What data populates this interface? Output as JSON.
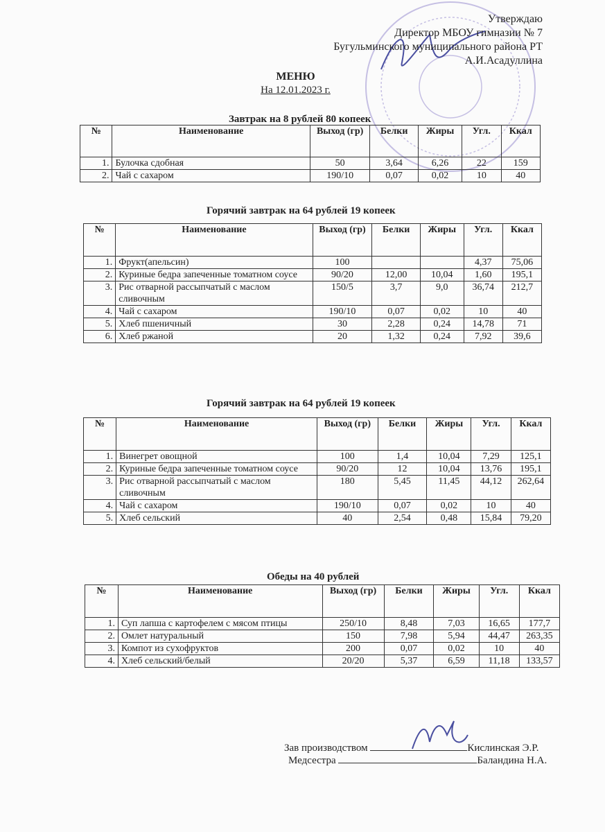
{
  "approval": {
    "line1": "Утверждаю",
    "line2": "Директор МБОУ гимназии № 7",
    "line3": "Бугульминского муниципального района РТ",
    "line4": "А.И.Асадуллина"
  },
  "title": "МЕНЮ",
  "date": "На 12.01.2023 г.",
  "columns": [
    "№",
    "Наименование",
    "Выход (гр)",
    "Белки",
    "Жиры",
    "Угл.",
    "Ккал"
  ],
  "sections": [
    {
      "title": "Завтрак на 8 рублей 80 копеек",
      "rows": [
        [
          "1.",
          "Булочка сдобная",
          "50",
          "3,64",
          "6,26",
          "22",
          "159"
        ],
        [
          "2.",
          "Чай с сахаром",
          "190/10",
          "0,07",
          "0,02",
          "10",
          "40"
        ]
      ]
    },
    {
      "title": "Горячий завтрак на 64 рублей 19 копеек",
      "rows": [
        [
          "1.",
          "Фрукт(апельсин)",
          "100",
          "",
          "",
          "4,37",
          "75,06"
        ],
        [
          "2.",
          "Куриные бедра запеченные томатном соусе",
          "90/20",
          "12,00",
          "10,04",
          "1,60",
          "195,1"
        ],
        [
          "3.",
          "Рис отварной рассыпчатый с маслом сливочным",
          "150/5",
          "3,7",
          "9,0",
          "36,74",
          "212,7"
        ],
        [
          "4.",
          "Чай с сахаром",
          "190/10",
          "0,07",
          "0,02",
          "10",
          "40"
        ],
        [
          "5.",
          "Хлеб пшеничный",
          "30",
          "2,28",
          "0,24",
          "14,78",
          "71"
        ],
        [
          "6.",
          "Хлеб ржаной",
          "20",
          "1,32",
          "0,24",
          "7,92",
          "39,6"
        ]
      ]
    },
    {
      "title": "Горячий завтрак на 64 рублей 19 копеек",
      "rows": [
        [
          "1.",
          "Винегрет овощной",
          "100",
          "1,4",
          "10,04",
          "7,29",
          "125,1"
        ],
        [
          "2.",
          "Куриные бедра запеченные томатном соусе",
          "90/20",
          "12",
          "10,04",
          "13,76",
          "195,1"
        ],
        [
          "3.",
          "Рис отварной рассыпчатый с маслом сливочным",
          "180",
          "5,45",
          "11,45",
          "44,12",
          "262,64"
        ],
        [
          "4.",
          "Чай с сахаром",
          "190/10",
          "0,07",
          "0,02",
          "10",
          "40"
        ],
        [
          "5.",
          "Хлеб сельский",
          "40",
          "2,54",
          "0,48",
          "15,84",
          "79,20"
        ]
      ]
    },
    {
      "title": "Обеды на 40 рублей",
      "rows": [
        [
          "1.",
          "Суп лапша с картофелем с мясом птицы",
          "250/10",
          "8,48",
          "7,03",
          "16,65",
          "177,7"
        ],
        [
          "2.",
          "Омлет натуральный",
          "150",
          "7,98",
          "5,94",
          "44,47",
          "263,35"
        ],
        [
          "3.",
          "Компот из сухофруктов",
          "200",
          "0,07",
          "0,02",
          "10",
          "40"
        ],
        [
          "4.",
          "Хлеб сельский/белый",
          "20/20",
          "5,37",
          "6,59",
          "11,18",
          "133,57"
        ]
      ]
    }
  ],
  "signatures": [
    {
      "role": "Зав производством",
      "name": "Кислинская Э.Р."
    },
    {
      "role": "Медсестра",
      "name": "Баландина Н.А."
    }
  ],
  "stamp_color": "#9a8fd0"
}
